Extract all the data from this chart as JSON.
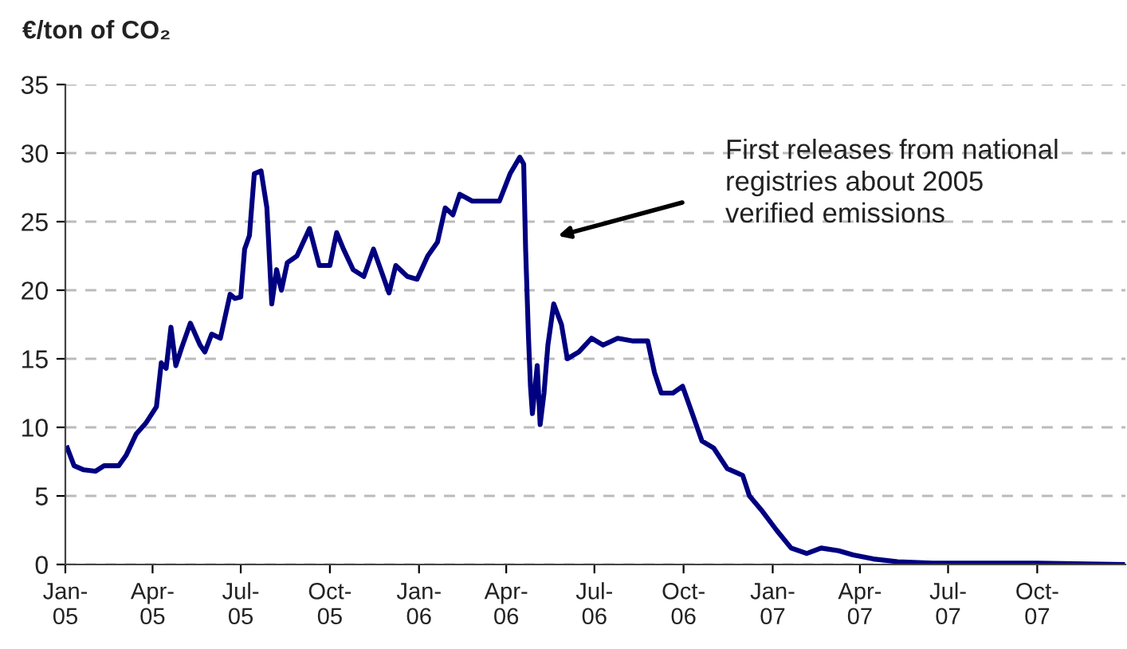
{
  "chart_data": {
    "type": "line",
    "ylabel": "€/ton of CO₂",
    "x": [
      "2005-01-03",
      "2005-01-10",
      "2005-01-20",
      "2005-02-01",
      "2005-02-10",
      "2005-02-25",
      "2005-03-05",
      "2005-03-15",
      "2005-03-25",
      "2005-04-05",
      "2005-04-10",
      "2005-04-15",
      "2005-04-20",
      "2005-04-25",
      "2005-05-01",
      "2005-05-10",
      "2005-05-20",
      "2005-05-25",
      "2005-06-01",
      "2005-06-10",
      "2005-06-20",
      "2005-06-25",
      "2005-07-01",
      "2005-07-05",
      "2005-07-10",
      "2005-07-15",
      "2005-07-22",
      "2005-07-28",
      "2005-08-02",
      "2005-08-07",
      "2005-08-12",
      "2005-08-18",
      "2005-08-28",
      "2005-09-10",
      "2005-09-20",
      "2005-10-01",
      "2005-10-05",
      "2005-10-08",
      "2005-10-15",
      "2005-10-25",
      "2005-11-05",
      "2005-11-15",
      "2005-11-25",
      "2005-12-01",
      "2005-12-08",
      "2005-12-20",
      "2005-12-30",
      "2006-01-10",
      "2006-01-20",
      "2006-01-28",
      "2006-02-05",
      "2006-02-12",
      "2006-02-25",
      "2006-03-10",
      "2006-03-25",
      "2006-04-05",
      "2006-04-15",
      "2006-04-19",
      "2006-04-21",
      "2006-04-24",
      "2006-04-26",
      "2006-04-28",
      "2006-05-03",
      "2006-05-06",
      "2006-05-10",
      "2006-05-14",
      "2006-05-20",
      "2006-05-28",
      "2006-06-03",
      "2006-06-15",
      "2006-06-28",
      "2006-07-10",
      "2006-07-25",
      "2006-08-10",
      "2006-08-25",
      "2006-09-01",
      "2006-09-08",
      "2006-09-20",
      "2006-09-30",
      "2006-10-10",
      "2006-10-20",
      "2006-11-01",
      "2006-11-15",
      "2006-12-01",
      "2006-12-08",
      "2006-12-20",
      "2007-01-05",
      "2007-01-20",
      "2007-02-05",
      "2007-02-20",
      "2007-03-10",
      "2007-03-25",
      "2007-04-15",
      "2007-05-10",
      "2007-06-15",
      "2007-08-01",
      "2007-10-01",
      "2007-12-28"
    ],
    "series": [
      {
        "color": "#000080",
        "values": [
          8.5,
          7.2,
          6.9,
          6.8,
          7.2,
          7.2,
          8,
          9.5,
          10.3,
          11.5,
          14.7,
          14.3,
          17.3,
          14.5,
          15.8,
          17.6,
          16,
          15.5,
          16.8,
          16.5,
          19.7,
          19.4,
          19.5,
          23,
          24,
          28.5,
          28.7,
          26,
          19,
          21.5,
          20,
          22,
          22.5,
          24.5,
          21.8,
          21.8,
          23.2,
          24.2,
          23,
          21.5,
          21,
          23,
          21,
          19.8,
          21.8,
          21,
          20.8,
          22.5,
          23.5,
          26,
          25.5,
          27,
          26.5,
          26.5,
          26.5,
          28.5,
          29.7,
          29.2,
          23,
          16.5,
          13,
          11,
          14.5,
          10.2,
          12.5,
          16,
          19,
          17.5,
          15,
          15.5,
          16.5,
          16,
          16.5,
          16.3,
          16.3,
          14,
          12.5,
          12.5,
          13,
          11,
          9,
          8.5,
          7,
          6.5,
          5,
          4,
          2.5,
          1.2,
          0.8,
          1.2,
          1,
          0.7,
          0.4,
          0.2,
          0.1,
          0.1,
          0.1,
          0
        ]
      }
    ],
    "xlim": [
      "2005-01-01",
      "2007-12-31"
    ],
    "xticks": [
      {
        "value": "2005-01-01",
        "label": "Jan-\n05"
      },
      {
        "value": "2005-04-01",
        "label": "Apr-\n05"
      },
      {
        "value": "2005-07-01",
        "label": "Jul-\n05"
      },
      {
        "value": "2005-10-01",
        "label": "Oct-\n05"
      },
      {
        "value": "2006-01-01",
        "label": "Jan-\n06"
      },
      {
        "value": "2006-04-01",
        "label": "Apr-\n06"
      },
      {
        "value": "2006-07-01",
        "label": "Jul-\n06"
      },
      {
        "value": "2006-10-01",
        "label": "Oct-\n06"
      },
      {
        "value": "2007-01-01",
        "label": "Jan-\n07"
      },
      {
        "value": "2007-04-01",
        "label": "Apr-\n07"
      },
      {
        "value": "2007-07-01",
        "label": "Jul-\n07"
      },
      {
        "value": "2007-10-01",
        "label": "Oct-\n07"
      }
    ],
    "ylim": [
      0,
      35
    ],
    "yticks": [
      0,
      5,
      10,
      15,
      20,
      25,
      30,
      35
    ],
    "grid": "y",
    "line_style": "solid",
    "annotations": [
      "First releases from national\nregistries about 2005\nverified emissions"
    ]
  }
}
